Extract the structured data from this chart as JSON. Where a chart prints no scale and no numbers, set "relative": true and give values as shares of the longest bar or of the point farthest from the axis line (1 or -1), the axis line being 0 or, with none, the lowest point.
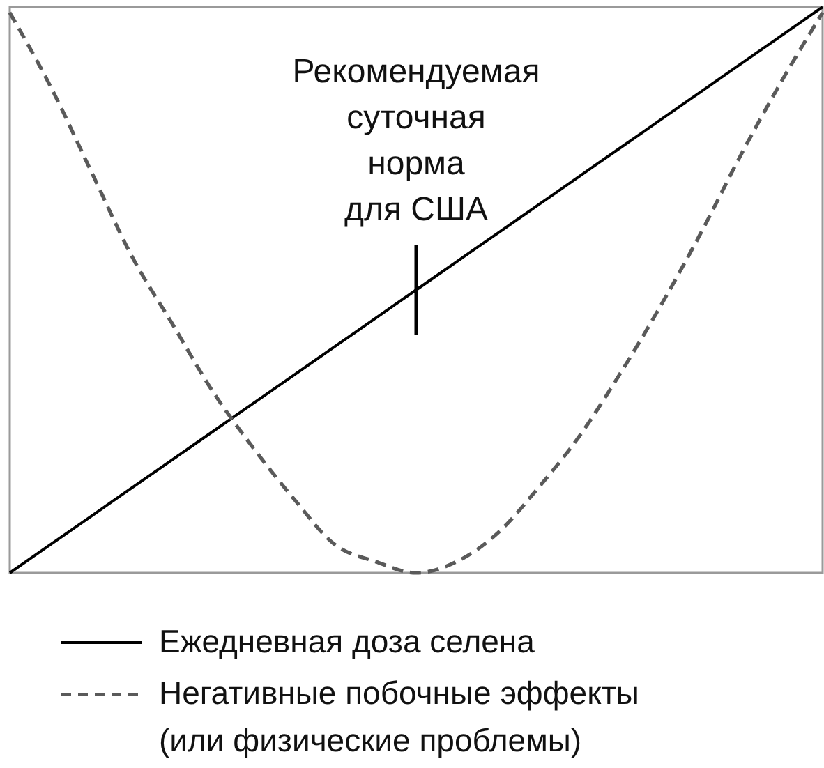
{
  "chart_data": {
    "type": "line",
    "relative": true,
    "categories": [
      null,
      null,
      null,
      null,
      null,
      null,
      null,
      null,
      null,
      null,
      null,
      null,
      null,
      null,
      null,
      null,
      null,
      null,
      null,
      null,
      null
    ],
    "series": [
      {
        "name": "Ежедневная доза селена",
        "color": "#000000",
        "line_style": "solid",
        "values": [
          0,
          0.05,
          0.1,
          0.15,
          0.2,
          0.25,
          0.3,
          0.35,
          0.4,
          0.45,
          0.5,
          0.55,
          0.6,
          0.65,
          0.7,
          0.75,
          0.8,
          0.85,
          0.9,
          0.95,
          1
        ]
      },
      {
        "name": "Негативные побочные эффекты (или физические проблемы)",
        "color": "#5a5a5a",
        "line_style": "dashed",
        "values": [
          0.99,
          0.86,
          0.71,
          0.56,
          0.44,
          0.32,
          0.22,
          0.13,
          0.05,
          0.02,
          0,
          0.02,
          0.07,
          0.15,
          0.24,
          0.35,
          0.47,
          0.6,
          0.74,
          0.87,
          0.99
        ]
      }
    ],
    "annotations": [
      {
        "text": "Рекомендуемая суточная норма для США",
        "y": 0.5
      }
    ],
    "legend": "bottom"
  }
}
